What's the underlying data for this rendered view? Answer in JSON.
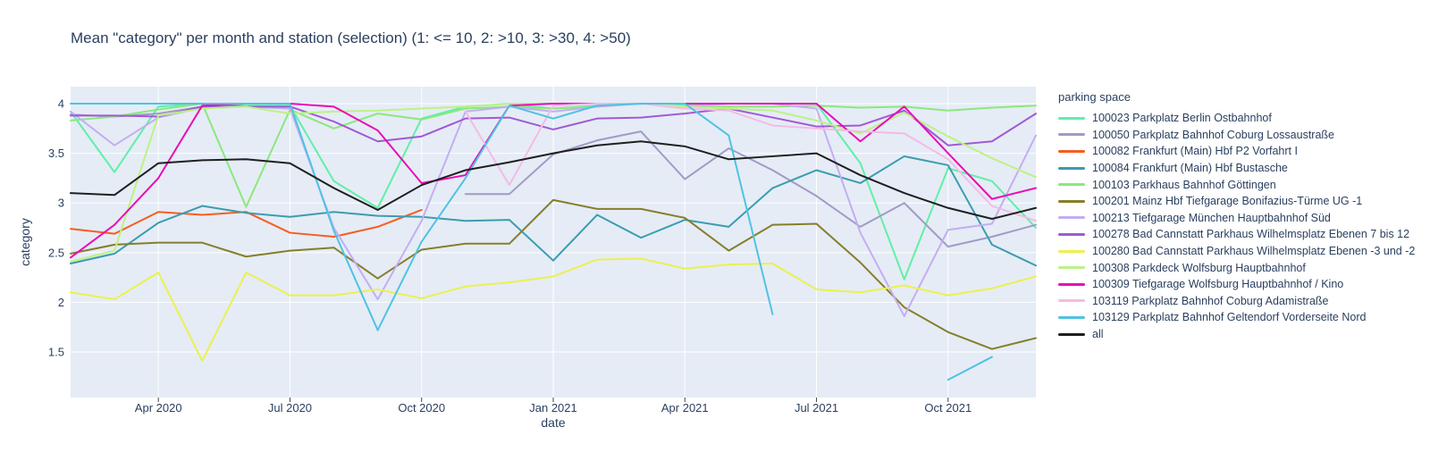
{
  "page": {
    "title": "Mean \"category\" per month and station (selection) (1: <= 10, 2: >10, 3: >30, 4: >50)"
  },
  "chart_data": {
    "type": "line",
    "title": "Mean \"category\" per month and station (selection) (1: <= 10, 2: >10, 3: >30, 4: >50)",
    "xlabel": "date",
    "ylabel": "category",
    "legend_title": "parking space",
    "legend_position": "right",
    "grid": true,
    "plot_bg": "#E5ECF6",
    "grid_color": "#FFFFFF",
    "text_color": "#2a3f5f",
    "ylim": [
      1.04,
      4.17
    ],
    "y_ticks": [
      1.5,
      2,
      2.5,
      3,
      3.5,
      4
    ],
    "months": [
      "2020-02",
      "2020-03",
      "2020-04",
      "2020-05",
      "2020-06",
      "2020-07",
      "2020-08",
      "2020-09",
      "2020-10",
      "2020-11",
      "2020-12",
      "2021-01",
      "2021-02",
      "2021-03",
      "2021-04",
      "2021-05",
      "2021-06",
      "2021-07",
      "2021-08",
      "2021-09",
      "2021-10",
      "2021-11",
      "2021-12"
    ],
    "x_ticks": [
      {
        "label": "Apr 2020",
        "month_index": 2
      },
      {
        "label": "Jul 2020",
        "month_index": 5
      },
      {
        "label": "Oct 2020",
        "month_index": 8
      },
      {
        "label": "Jan 2021",
        "month_index": 11
      },
      {
        "label": "Apr 2021",
        "month_index": 14
      },
      {
        "label": "Jul 2021",
        "month_index": 17
      },
      {
        "label": "Oct 2021",
        "month_index": 20
      }
    ],
    "series": [
      {
        "id": "100023",
        "name": "100023 Parkplatz Berlin Ostbahnhof",
        "color": "#61EFA6",
        "values": [
          3.92,
          3.31,
          3.97,
          4,
          3.98,
          3.98,
          3.22,
          2.95,
          3.85,
          3.97,
          4,
          3.95,
          3.98,
          4,
          3.98,
          4,
          4,
          4,
          3.4,
          2.23,
          3.35,
          3.22,
          2.75
        ]
      },
      {
        "id": "100050",
        "name": "100050 Parkplatz Bahnhof Coburg Lossaustraße",
        "color": "#A29AC6",
        "values": [
          3.89,
          3.87,
          3.9,
          3.97,
          3.97,
          3.95,
          null,
          null,
          null,
          3.09,
          3.09,
          3.49,
          3.63,
          3.72,
          3.24,
          3.55,
          3.33,
          3.07,
          2.76,
          3.0,
          2.56,
          2.66,
          2.78
        ]
      },
      {
        "id": "100082",
        "name": "100082 Frankfurt (Main) Hbf P2 Vorfahrt I",
        "color": "#F95C20",
        "values": [
          2.74,
          2.69,
          2.91,
          2.88,
          2.91,
          2.7,
          2.66,
          2.76,
          2.93,
          null,
          null,
          null,
          null,
          null,
          null,
          null,
          null,
          null,
          null,
          null,
          null,
          null,
          null
        ]
      },
      {
        "id": "100084",
        "name": "100084 Frankfurt (Main) Hbf Bustasche",
        "color": "#3A9DAE",
        "values": [
          2.39,
          2.49,
          2.8,
          2.97,
          2.9,
          2.86,
          2.91,
          2.87,
          2.86,
          2.82,
          2.83,
          2.42,
          2.88,
          2.65,
          2.83,
          2.76,
          3.15,
          3.33,
          3.2,
          3.47,
          3.38,
          2.58,
          2.37
        ]
      },
      {
        "id": "100103",
        "name": "100103 Parkhaus Bahnhof Göttingen",
        "color": "#8BE87C",
        "values": [
          3.83,
          3.87,
          3.94,
          4,
          2.96,
          3.94,
          3.75,
          3.9,
          3.84,
          3.95,
          3.97,
          3.95,
          3.97,
          4,
          3.97,
          3.97,
          3.97,
          3.98,
          3.96,
          3.97,
          3.93,
          3.96,
          3.98
        ]
      },
      {
        "id": "100201",
        "name": "100201 Mainz Hbf Tiefgarage Bonifazius-Türme UG -1",
        "color": "#867E2B",
        "values": [
          2.49,
          2.58,
          2.6,
          2.6,
          2.46,
          2.52,
          2.55,
          2.24,
          2.53,
          2.59,
          2.59,
          3.03,
          2.94,
          2.94,
          2.85,
          2.52,
          2.78,
          2.79,
          2.4,
          1.95,
          1.7,
          1.53,
          1.64
        ]
      },
      {
        "id": "100213",
        "name": "100213 Tiefgarage München Hauptbahnhof Süd",
        "color": "#C4ADF2",
        "values": [
          3.92,
          3.58,
          3.86,
          3.96,
          3.97,
          3.95,
          2.75,
          2.03,
          2.82,
          3.92,
          3.97,
          3.92,
          3.97,
          4,
          3.97,
          4,
          4,
          3.95,
          2.7,
          1.86,
          2.73,
          2.79,
          3.68
        ]
      },
      {
        "id": "100278",
        "name": "100278 Bad Cannstatt Parkhaus Wilhelmsplatz Ebenen 7 bis 12",
        "color": "#A159D6",
        "values": [
          3.88,
          3.88,
          3.87,
          3.97,
          3.97,
          3.97,
          3.82,
          3.62,
          3.67,
          3.85,
          3.86,
          3.74,
          3.85,
          3.86,
          3.9,
          3.95,
          3.86,
          3.77,
          3.78,
          3.93,
          3.58,
          3.62,
          3.9
        ]
      },
      {
        "id": "100280",
        "name": "100280 Bad Cannstatt Parkhaus Wilhelmsplatz Ebenen -3 und -2",
        "color": "#ECF04E",
        "values": [
          2.1,
          2.03,
          2.3,
          1.41,
          2.3,
          2.07,
          2.07,
          2.13,
          2.04,
          2.16,
          2.2,
          2.26,
          2.43,
          2.44,
          2.34,
          2.38,
          2.39,
          2.13,
          2.1,
          2.17,
          2.07,
          2.14,
          2.26
        ]
      },
      {
        "id": "100308",
        "name": "100308 Parkdeck Wolfsburg Hauptbahnhof",
        "color": "#BDF283",
        "values": [
          2.41,
          2.52,
          3.88,
          3.95,
          3.97,
          3.9,
          3.92,
          3.93,
          3.95,
          3.97,
          4,
          4,
          4,
          4,
          3.97,
          3.95,
          3.93,
          3.83,
          3.7,
          3.91,
          3.67,
          3.45,
          3.26
        ]
      },
      {
        "id": "100309",
        "name": "100309 Tiefgarage Wolfsburg Hauptbahnhof / Kino",
        "color": "#E90CB5",
        "values": [
          2.45,
          2.78,
          3.25,
          3.98,
          4,
          4,
          3.97,
          3.73,
          3.2,
          3.28,
          3.98,
          4,
          4,
          4,
          4,
          4,
          4,
          4,
          3.62,
          3.97,
          3.5,
          3.04,
          3.15
        ]
      },
      {
        "id": "103119",
        "name": "103119 Parkplatz Bahnhof Coburg Adamistraße",
        "color": "#F3BBE6",
        "values": [
          null,
          null,
          null,
          null,
          null,
          null,
          null,
          null,
          null,
          3.92,
          3.18,
          3.98,
          4,
          4,
          3.95,
          3.93,
          3.78,
          3.75,
          3.72,
          3.7,
          3.44,
          2.97,
          2.82
        ]
      },
      {
        "id": "103129",
        "name": "103129 Parkplatz Bahnhof Geltendorf Vorderseite Nord",
        "color": "#50C2E3",
        "values": [
          4,
          4,
          4,
          4,
          4,
          4,
          2.72,
          1.72,
          2.61,
          3.25,
          3.98,
          3.85,
          3.98,
          4,
          4,
          3.68,
          1.88,
          null,
          null,
          null,
          1.22,
          1.45,
          null
        ]
      },
      {
        "id": "all",
        "name": "all",
        "color": "#1F1F1F",
        "values": [
          3.1,
          3.08,
          3.4,
          3.43,
          3.44,
          3.4,
          3.15,
          2.93,
          3.18,
          3.33,
          3.41,
          3.5,
          3.58,
          3.62,
          3.57,
          3.44,
          3.47,
          3.5,
          3.28,
          3.1,
          2.95,
          2.84,
          2.95
        ]
      }
    ]
  }
}
